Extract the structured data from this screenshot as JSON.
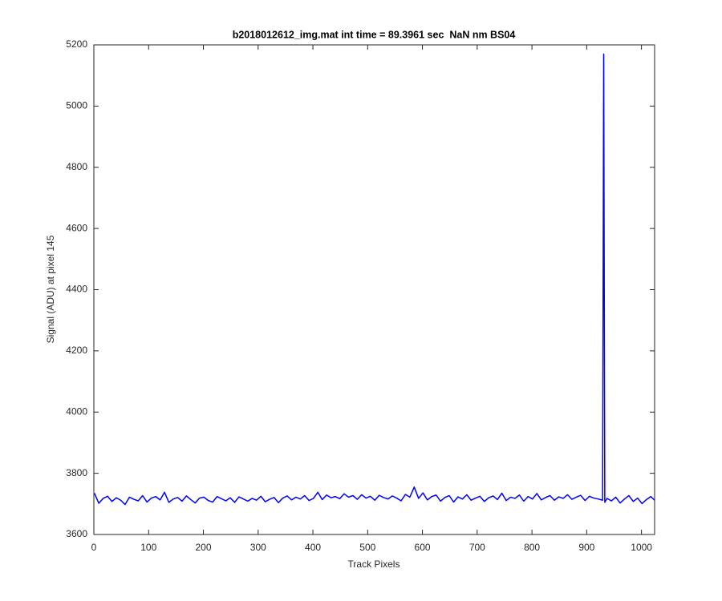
{
  "chart_data": {
    "type": "line",
    "title": "b2018012612_img.mat int time = 89.3961 sec  NaN nm BS04",
    "x_label": "Track Pixels",
    "y_label": "Signal (ADU) at pixel 145",
    "x": [
      1,
      9,
      17,
      25,
      33,
      41,
      49,
      57,
      65,
      73,
      81,
      89,
      97,
      105,
      113,
      121,
      129,
      137,
      145,
      153,
      161,
      169,
      177,
      185,
      193,
      201,
      209,
      217,
      225,
      233,
      241,
      249,
      257,
      265,
      273,
      281,
      289,
      297,
      305,
      313,
      321,
      329,
      337,
      345,
      353,
      361,
      369,
      377,
      385,
      393,
      401,
      409,
      417,
      425,
      433,
      441,
      449,
      457,
      465,
      473,
      481,
      489,
      497,
      505,
      513,
      521,
      529,
      537,
      545,
      553,
      561,
      569,
      577,
      585,
      593,
      601,
      609,
      617,
      625,
      633,
      641,
      649,
      657,
      665,
      673,
      681,
      689,
      697,
      705,
      713,
      721,
      729,
      737,
      745,
      753,
      761,
      769,
      777,
      785,
      793,
      801,
      809,
      817,
      825,
      833,
      841,
      849,
      857,
      865,
      873,
      881,
      889,
      897,
      905,
      913,
      921,
      929,
      931,
      933,
      937,
      945,
      953,
      961,
      969,
      977,
      985,
      993,
      1001,
      1009,
      1017,
      1024
    ],
    "series": [
      {
        "color": "#0000ff",
        "values": [
          3735,
          3702,
          3718,
          3725,
          3708,
          3720,
          3712,
          3698,
          3722,
          3715,
          3710,
          3727,
          3706,
          3719,
          3724,
          3713,
          3738,
          3705,
          3716,
          3721,
          3709,
          3726,
          3714,
          3703,
          3719,
          3722,
          3711,
          3706,
          3724,
          3717,
          3710,
          3720,
          3705,
          3723,
          3716,
          3709,
          3718,
          3712,
          3725,
          3707,
          3715,
          3721,
          3704,
          3719,
          3726,
          3713,
          3722,
          3716,
          3727,
          3711,
          3718,
          3738,
          3714,
          3729,
          3720,
          3724,
          3717,
          3733,
          3722,
          3727,
          3715,
          3730,
          3719,
          3725,
          3712,
          3728,
          3721,
          3716,
          3726,
          3719,
          3710,
          3731,
          3722,
          3755,
          3718,
          3736,
          3713,
          3724,
          3729,
          3709,
          3721,
          3727,
          3706,
          3723,
          3716,
          3730,
          3712,
          3719,
          3725,
          3708,
          3720,
          3726,
          3714,
          3735,
          3711,
          3722,
          3718,
          3729,
          3709,
          3724,
          3716,
          3734,
          3713,
          3721,
          3727,
          3712,
          3723,
          3718,
          3730,
          3715,
          3722,
          3728,
          3711,
          3725,
          3719,
          3716,
          3712,
          5170,
          3705,
          3718,
          3710,
          3722,
          3703,
          3716,
          3727,
          3708,
          3719,
          3701,
          3714,
          3724,
          3712
        ]
      }
    ],
    "xlim": [
      0,
      1024
    ],
    "xticks": [
      0,
      100,
      200,
      300,
      400,
      500,
      600,
      700,
      800,
      900,
      1000
    ],
    "ylim": [
      3600,
      5200
    ],
    "yticks": [
      3600,
      3800,
      4000,
      4200,
      4400,
      4600,
      4800,
      5000,
      5200
    ],
    "grid": false
  }
}
